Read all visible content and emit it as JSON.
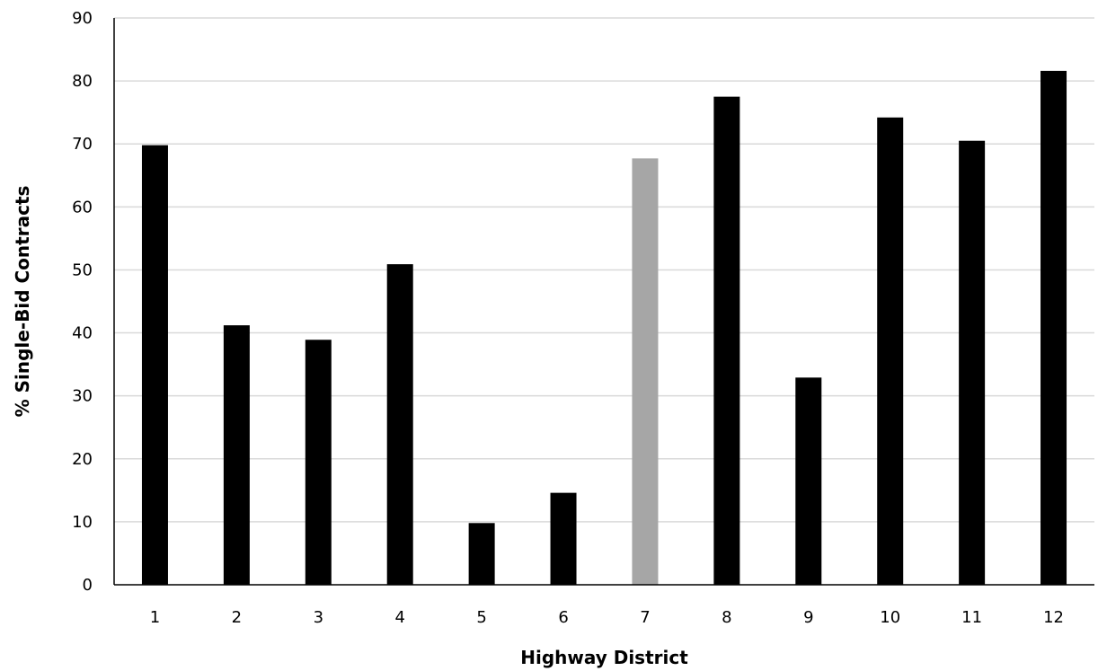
{
  "chart_data": {
    "type": "bar",
    "title": "",
    "xlabel": "Highway District",
    "ylabel": "% Single-Bid Contracts",
    "categories": [
      "1",
      "2",
      "3",
      "4",
      "5",
      "6",
      "7",
      "8",
      "9",
      "10",
      "11",
      "12"
    ],
    "values": [
      69.8,
      41.2,
      38.9,
      50.9,
      9.8,
      14.6,
      67.7,
      77.5,
      32.9,
      74.2,
      70.5,
      81.6
    ],
    "bar_colors": [
      "#000000",
      "#000000",
      "#000000",
      "#000000",
      "#000000",
      "#000000",
      "#a6a6a6",
      "#000000",
      "#000000",
      "#000000",
      "#000000",
      "#000000"
    ],
    "ylim": [
      0,
      90
    ],
    "yticks": [
      "0",
      "10",
      "20",
      "30",
      "40",
      "50",
      "60",
      "70",
      "80",
      "90"
    ],
    "grid": true,
    "gridline_color": "#d9d9d9",
    "axis_color": "#000000"
  }
}
